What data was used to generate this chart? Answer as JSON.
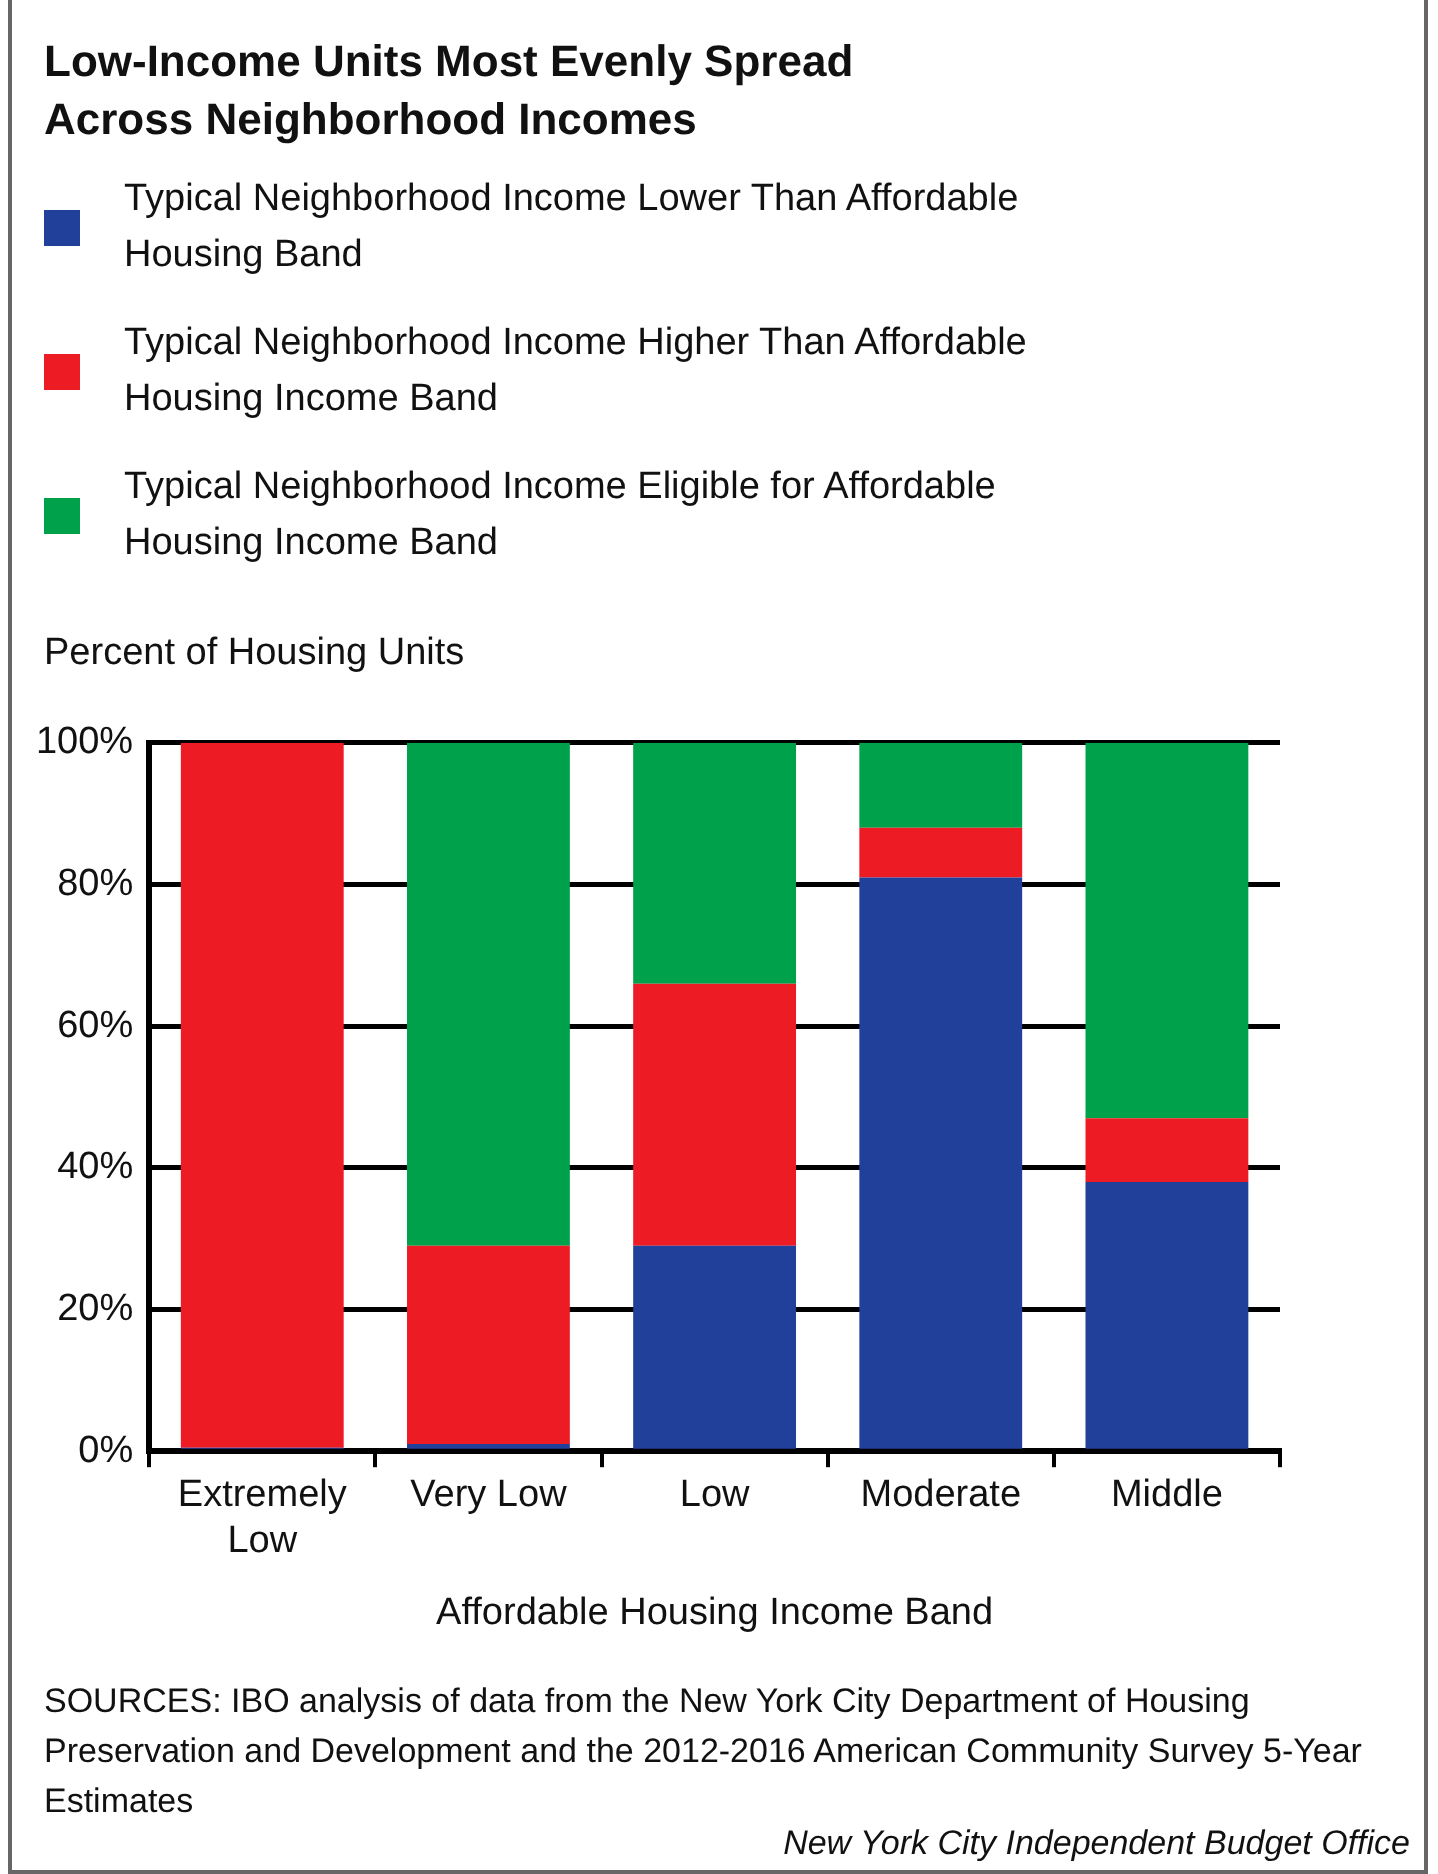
{
  "chart_data": {
    "type": "bar",
    "title": "Low-Income Units Most Evenly Spread Across Neighborhood Incomes",
    "ylabel": "Percent of Housing Units",
    "xlabel": "Affordable Housing Income Band",
    "categories": [
      "Extremely Low",
      "Very Low",
      "Low",
      "Moderate",
      "Middle"
    ],
    "series": [
      {
        "name": "Typical Neighborhood Income Lower Than Affordable Housing Band",
        "color": "#21409a",
        "values": [
          0.5,
          1,
          29,
          81,
          38
        ]
      },
      {
        "name": "Typical Neighborhood Income Higher Than Affordable Housing Income Band",
        "color": "#ed1c24",
        "values": [
          99.5,
          28,
          37,
          7,
          9
        ]
      },
      {
        "name": "Typical Neighborhood Income Eligible for Affordable Housing Income Band",
        "color": "#00a14b",
        "values": [
          0,
          71,
          34,
          12,
          53
        ]
      }
    ],
    "stacked": true,
    "ylim": [
      0,
      100
    ],
    "yticks": [
      {
        "value": 0,
        "label": "0%"
      },
      {
        "value": 20,
        "label": "20%"
      },
      {
        "value": 40,
        "label": "40%"
      },
      {
        "value": 60,
        "label": "60%"
      },
      {
        "value": 80,
        "label": "80%"
      },
      {
        "value": 100,
        "label": "100%"
      }
    ],
    "grid": "y",
    "legend": "top",
    "annotations": [
      "SOURCES: IBO analysis of data from the New York City Department of Housing Preservation and Development and the 2012-2016 American Community Survey 5-Year Estimates",
      "New York City Independent Budget Office"
    ]
  }
}
